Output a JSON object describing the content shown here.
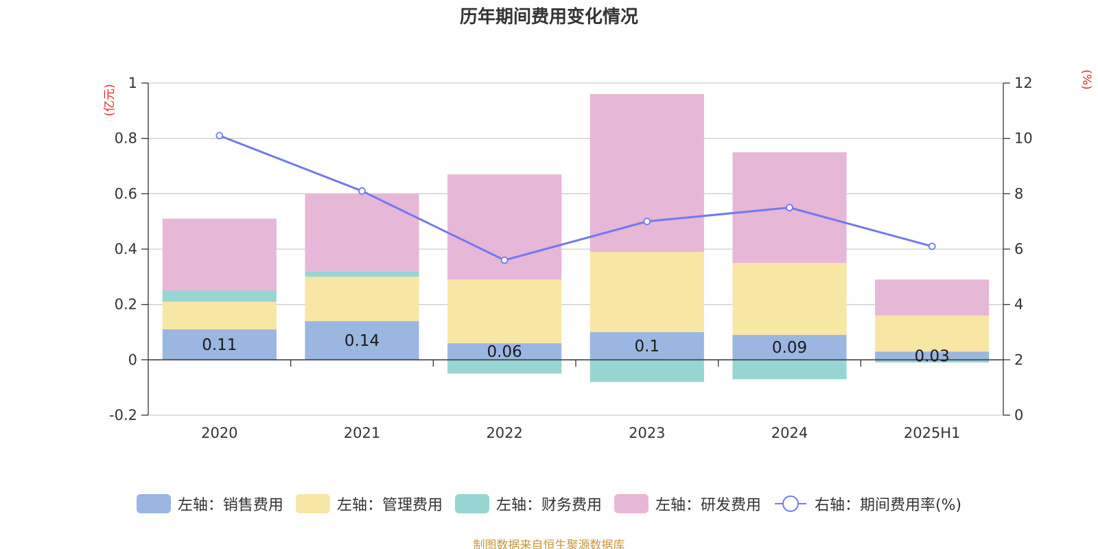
{
  "chart_data": {
    "type": "bar",
    "title": "历年期间费用变化情况",
    "categories": [
      "2020",
      "2021",
      "2022",
      "2023",
      "2024",
      "2025H1"
    ],
    "stacked": true,
    "series": [
      {
        "name": "左轴：销售费用",
        "axis": "left",
        "type": "bar",
        "color": "#9bb6e0",
        "values": [
          0.11,
          0.14,
          0.06,
          0.1,
          0.09,
          0.03
        ]
      },
      {
        "name": "左轴：管理费用",
        "axis": "left",
        "type": "bar",
        "color": "#f8e6a5",
        "values": [
          0.1,
          0.16,
          0.23,
          0.29,
          0.26,
          0.13
        ]
      },
      {
        "name": "左轴：财务费用",
        "axis": "left",
        "type": "bar",
        "color": "#97d5d3",
        "values": [
          0.04,
          0.02,
          -0.05,
          -0.08,
          -0.07,
          -0.01
        ]
      },
      {
        "name": "左轴：研发费用",
        "axis": "left",
        "type": "bar",
        "color": "#e7b7d8",
        "values": [
          0.26,
          0.28,
          0.38,
          0.57,
          0.4,
          0.13
        ]
      },
      {
        "name": "右轴：期间费用率(%)",
        "axis": "right",
        "type": "line",
        "color": "#7079f0",
        "values": [
          10.1,
          8.1,
          5.6,
          7.0,
          7.5,
          6.1
        ]
      }
    ],
    "data_labels": [
      "0.11",
      "0.14",
      "0.06",
      "0.1",
      "0.09",
      "0.03"
    ],
    "y_left": {
      "unit": "(亿元)",
      "ylim": [
        -0.2,
        1
      ],
      "ticks": [
        "-0.2",
        "0",
        "0.2",
        "0.4",
        "0.6",
        "0.8",
        "1"
      ]
    },
    "y_right": {
      "unit": "(%)",
      "ylim": [
        0,
        12
      ],
      "ticks": [
        "0",
        "2",
        "4",
        "6",
        "8",
        "10",
        "12"
      ]
    },
    "grid": true,
    "legend_position": "bottom"
  },
  "source_note": "制图数据来自恒生聚源数据库"
}
